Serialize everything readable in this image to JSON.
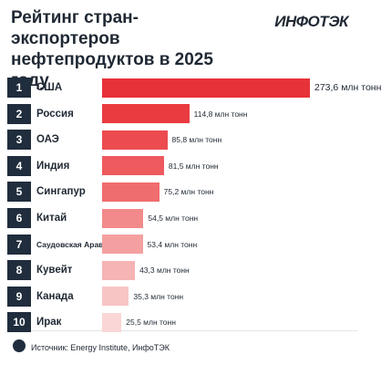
{
  "chart_data": {
    "type": "bar",
    "orientation": "horizontal",
    "title": "Рейтинг стран-экспортеров нефтепродуктов в 2025 году",
    "logo": "ИНФОТЭК",
    "ranks": [
      1,
      2,
      3,
      4,
      5,
      6,
      7,
      8,
      9,
      10
    ],
    "categories": [
      "США",
      "Россия",
      "ОАЭ",
      "Индия",
      "Сингапур",
      "Китай",
      "Саудовская Аравия",
      "Кувейт",
      "Канада",
      "Ирак"
    ],
    "values": [
      273.6,
      114.8,
      85.8,
      81.5,
      75.2,
      54.5,
      53.4,
      43.3,
      35.3,
      25.5
    ],
    "value_labels": [
      "273,6 млн тонн",
      "114,8 млн тонн",
      "85,8 млн тонн",
      "81,5 млн тонн",
      "75,2 млн тонн",
      "54,5 млн тонн",
      "53,4 млн тонн",
      "43,3 млн тонн",
      "35,3 млн тонн",
      "25,5 млн тонн"
    ],
    "colors": [
      "#e8323a",
      "#ea3b41",
      "#ec4b4f",
      "#ee5a5d",
      "#f06d6e",
      "#f28a8b",
      "#f4a0a0",
      "#f6b4b4",
      "#f8c5c5",
      "#fad6d6"
    ],
    "source": "Источник: Energy Institute, ИнфоТЭК"
  }
}
